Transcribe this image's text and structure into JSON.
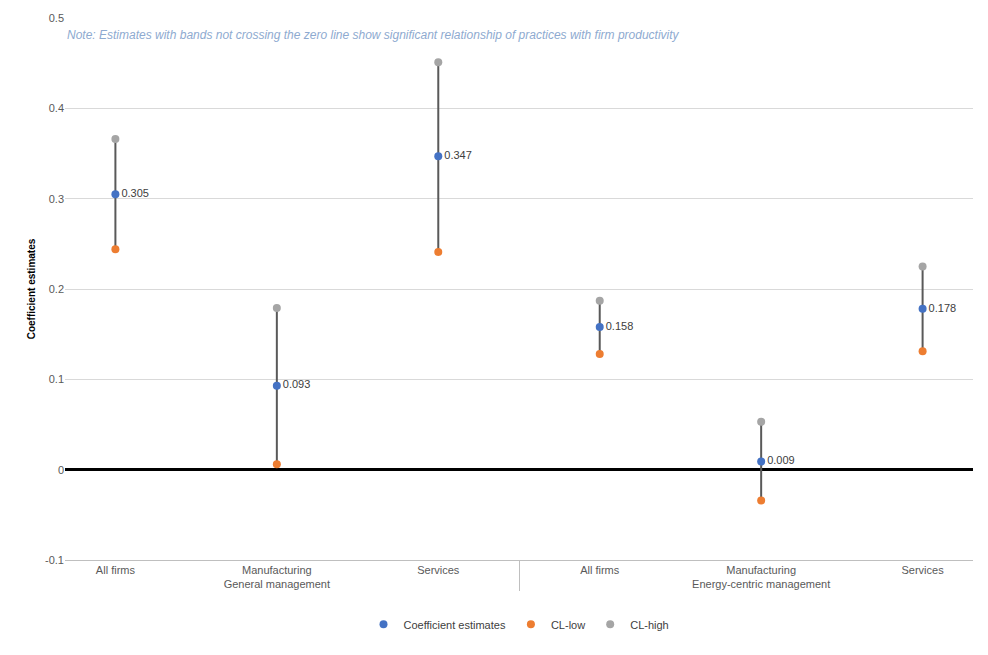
{
  "chart_data": {
    "type": "scatter",
    "y_label": "Coefficient estimates",
    "annotations": [
      "Note: Estimates with bands not crossing the zero line show significant relationship of practices with firm productivity"
    ],
    "categories": [
      "All firms",
      "Manufacturing",
      "Services",
      "All firms",
      "Manufacturing",
      "Services"
    ],
    "groups": [
      "General management",
      "General management",
      "General management",
      "Energy-centric management",
      "Energy-centric management",
      "Energy-centric management"
    ],
    "series": [
      {
        "name": "Coefficient estimates",
        "color": "#4472c4",
        "marker": "circle",
        "data_labels": true,
        "values": [
          0.305,
          0.093,
          0.347,
          0.158,
          0.009,
          0.178
        ]
      },
      {
        "name": "CL-low",
        "color": "#ed7d31",
        "marker": "circle",
        "values": [
          0.244,
          0.006,
          0.241,
          0.128,
          -0.034,
          0.131
        ]
      },
      {
        "name": "CL-high",
        "color": "#a5a5a5",
        "marker": "circle",
        "values": [
          0.366,
          0.179,
          0.451,
          0.187,
          0.053,
          0.225
        ]
      }
    ],
    "ylim": [
      -0.1,
      0.5
    ],
    "yticks": [
      -0.1,
      0,
      0.1,
      0.2,
      0.3,
      0.4,
      0.5
    ],
    "grid": true,
    "legend": "bottom"
  }
}
